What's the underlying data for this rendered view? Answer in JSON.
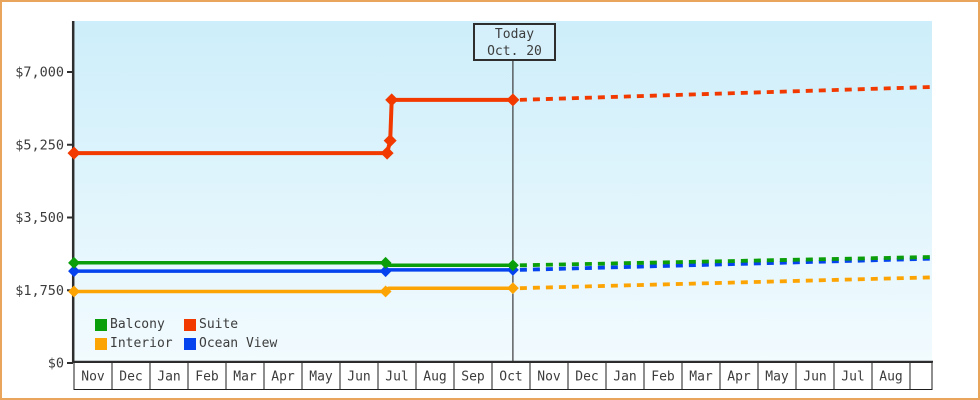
{
  "window": {
    "frame_color": "#eaa55c",
    "background_color": "#ffffff"
  },
  "chart_data": {
    "type": "line",
    "title": "",
    "grid": false,
    "legend_position": "bottom-left",
    "plot_background": {
      "top_color": "#cdeefa",
      "bottom_color": "#f2fbfe"
    },
    "axis_color": "#2e2e2e",
    "ylim": [
      0,
      7000
    ],
    "y_ticks": [
      {
        "label": "$0",
        "value": 0
      },
      {
        "label": "$1,750",
        "value": 1750
      },
      {
        "label": "$3,500",
        "value": 3500
      },
      {
        "label": "$5,250",
        "value": 5250
      },
      {
        "label": "$7,000",
        "value": 7000
      }
    ],
    "x_tick_labels": [
      "Nov",
      "Dec",
      "Jan",
      "Feb",
      "Mar",
      "Apr",
      "May",
      "Jun",
      "Jul",
      "Aug",
      "Sep",
      "Oct",
      "Nov",
      "Dec",
      "Jan",
      "Feb",
      "Mar",
      "Apr",
      "May",
      "Jun",
      "Jul",
      "Aug"
    ],
    "today_annotation": {
      "line1": "Today",
      "line2": "Oct. 20",
      "month_position": 11.55
    },
    "projection_end_month": 22.58,
    "series": [
      {
        "name": "Balcony",
        "color": "#0a9e0a",
        "solid_points": [
          {
            "month": 0,
            "price": 2410,
            "marker": true
          },
          {
            "month": 8.2,
            "price": 2410,
            "marker": true
          },
          {
            "month": 8.28,
            "price": 2350,
            "marker": false
          },
          {
            "month": 11.55,
            "price": 2350,
            "marker": true
          }
        ],
        "projected_price_at_end": 2550
      },
      {
        "name": "Suite",
        "color": "#f13900",
        "solid_points": [
          {
            "month": 0,
            "price": 5050,
            "marker": true
          },
          {
            "month": 8.24,
            "price": 5050,
            "marker": true
          },
          {
            "month": 8.32,
            "price": 5350,
            "marker": true
          },
          {
            "month": 8.36,
            "price": 6330,
            "marker": true
          },
          {
            "month": 11.55,
            "price": 6330,
            "marker": true
          }
        ],
        "projected_price_at_end": 6640
      },
      {
        "name": "Interior",
        "color": "#fda405",
        "solid_points": [
          {
            "month": 0,
            "price": 1720,
            "marker": true
          },
          {
            "month": 8.2,
            "price": 1720,
            "marker": true
          },
          {
            "month": 8.28,
            "price": 1800,
            "marker": false
          },
          {
            "month": 11.55,
            "price": 1800,
            "marker": true
          }
        ],
        "projected_price_at_end": 2060
      },
      {
        "name": "Ocean View",
        "color": "#0443ee",
        "solid_points": [
          {
            "month": 0,
            "price": 2210,
            "marker": true
          },
          {
            "month": 8.2,
            "price": 2210,
            "marker": true
          },
          {
            "month": 8.28,
            "price": 2240,
            "marker": false
          },
          {
            "month": 11.55,
            "price": 2240,
            "marker": true
          }
        ],
        "projected_price_at_end": 2510
      }
    ]
  }
}
